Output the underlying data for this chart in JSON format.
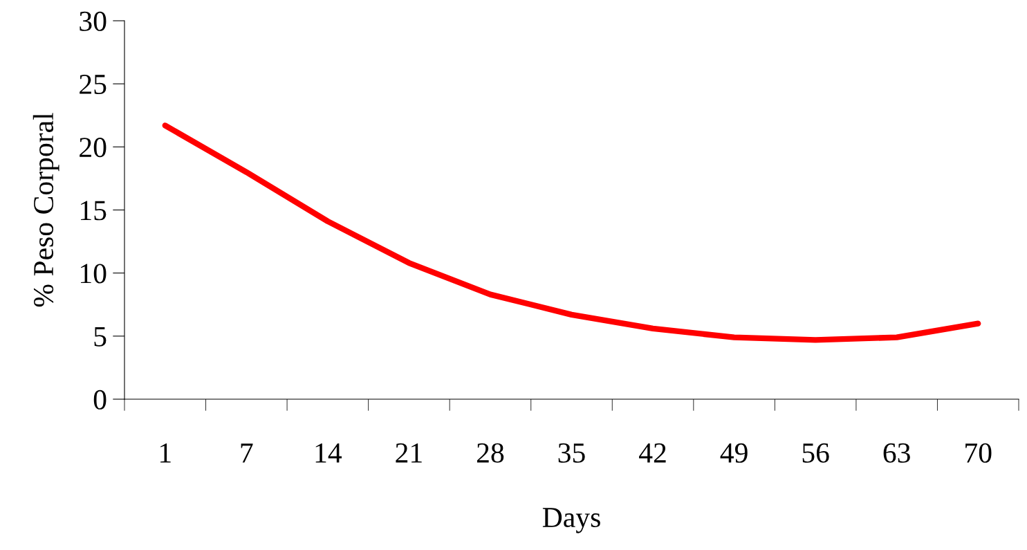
{
  "chart_data": {
    "type": "line",
    "xlabel": "Days",
    "ylabel": "% Peso Corporal",
    "categories": [
      "1",
      "7",
      "14",
      "21",
      "28",
      "35",
      "42",
      "49",
      "56",
      "63",
      "70"
    ],
    "series": [
      {
        "color": "#ff0000",
        "values": [
          21.7,
          18.0,
          14.1,
          10.8,
          8.3,
          6.7,
          5.6,
          4.9,
          4.7,
          4.9,
          6.0
        ]
      }
    ],
    "ylim": [
      0,
      30
    ],
    "yticks": [
      0,
      5,
      10,
      15,
      20,
      25,
      30
    ],
    "grid": false,
    "legend": false,
    "marker": "none",
    "line_style": "solid"
  }
}
